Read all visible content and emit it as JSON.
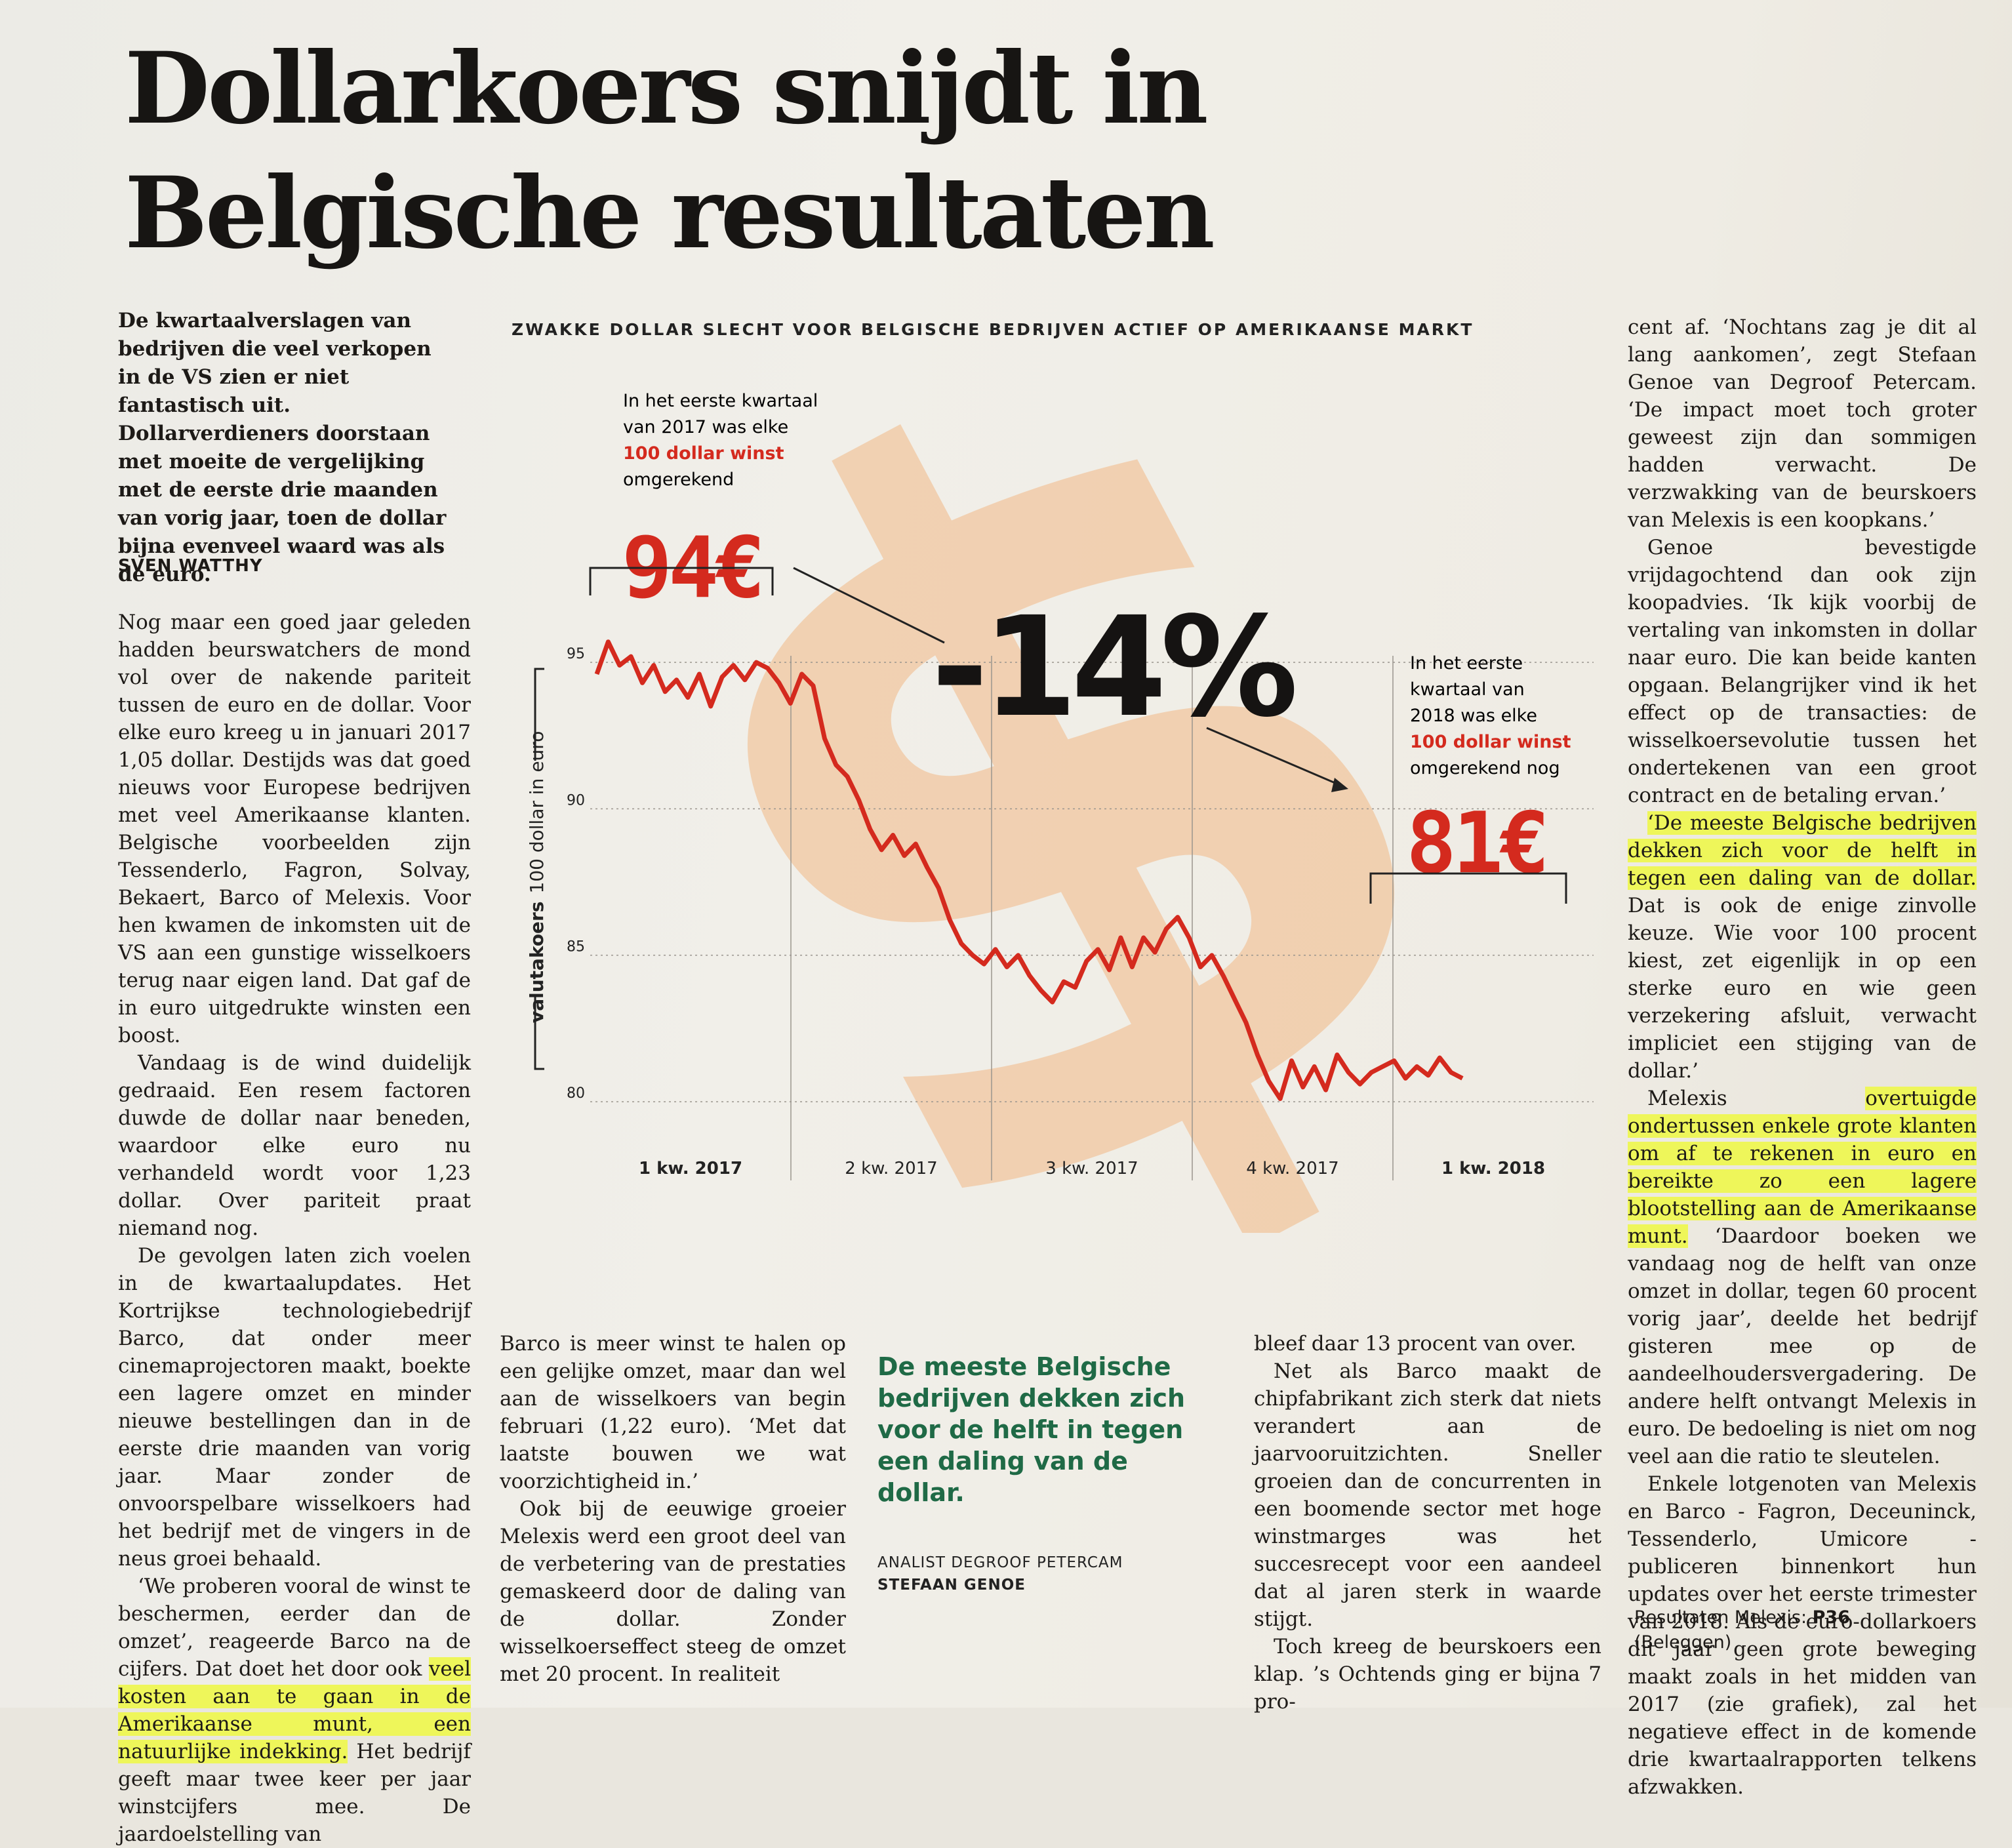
{
  "headline": "Dollarkoers snijdt in Belgische resultaten",
  "lead": "De kwartaalverslagen van bedrijven die veel verkopen in de VS zien er niet fantastisch uit. Dollarverdieners doorstaan met moeite de vergelijking met de eerste drie maanden van vorig jaar, toen de dollar bijna evenveel waard was als de euro.",
  "byline": "SVEN WATTHY",
  "col1": {
    "p1": "Nog maar een goed jaar geleden hadden beurswatchers de mond vol over de nakende pariteit tussen de euro en de dollar. Voor elke euro kreeg u in januari 2017 1,05 dollar. Destijds was dat goed nieuws voor Europese bedrijven met veel Amerikaanse klanten. Belgische voorbeelden zijn Tessenderlo, Fagron, Solvay, Bekaert, Barco of Melexis. Voor hen kwamen de inkomsten uit de VS aan een gunstige wisselkoers terug naar eigen land. Dat gaf de in euro uitgedrukte winsten een boost.",
    "p2": "Vandaag is de wind duidelijk gedraaid. Een resem factoren duwde de dollar naar beneden, waardoor elke euro nu verhandeld wordt voor 1,23 dollar. Over pariteit praat niemand nog.",
    "p3": "De gevolgen laten zich voelen in de kwartaalupdates. Het Kortrijkse technologiebedrijf Barco, dat onder meer cinemaprojectoren maakt, boekte een lagere omzet en minder nieuwe bestellingen dan in de eerste drie maanden van vorig jaar. Maar zonder de onvoorspelbare wisselkoers had het bedrijf met de vingers in de neus groei behaald.",
    "p4a": "‘We proberen vooral de winst te beschermen, eerder dan de omzet’, reageerde Barco na de cijfers. Dat doet het door ook ",
    "p4hl": "veel kosten aan te gaan in de Amerikaanse munt, een natuurlijke indekking.",
    "p4b": " Het bedrijf geeft maar twee keer per jaar winstcijfers mee. De jaardoelstelling van"
  },
  "col2": {
    "p1": "Barco is meer winst te halen op een gelijke omzet, maar dan wel aan de wisselkoers van begin februari (1,22 euro). ‘Met dat laatste bouwen we wat voorzichtigheid in.’",
    "p2": "Ook bij de eeuwige groeier Melexis werd een groot deel van de verbetering van de prestaties gemaskeerd door de daling van de dollar. Zonder wisselkoerseffect steeg de omzet met 20 procent. In realiteit"
  },
  "quote": {
    "text": "De meeste Belgische bedrijven dekken zich voor de helft in tegen een daling van de dollar.",
    "source_line1": "ANALIST DEGROOF PETERCAM",
    "source_line2": "STEFAAN GENOE"
  },
  "col3": {
    "p1": "bleef daar 13 procent van over.",
    "p2": "Net als Barco maakt de chipfabrikant zich sterk dat niets verandert aan de jaarvooruitzichten. Sneller groeien dan de concurrenten in een boomende sector met hoge winstmarges was het succesrecept voor een aandeel dat al jaren sterk in waarde stijgt.",
    "p3": "Toch kreeg de beurskoers een klap. ’s Ochtends ging er bijna 7 pro-"
  },
  "col4": {
    "p1": "cent af. ‘Nochtans zag je dit al lang aankomen’, zegt Stefaan Genoe van Degroof Petercam. ‘De impact moet toch groter geweest zijn dan sommigen hadden verwacht. De verzwakking van de beurskoers van Melexis is een koopkans.’",
    "p2": "Genoe bevestigde vrijdagochtend dan ook zijn koopadvies. ‘Ik kijk voorbij de vertaling van inkomsten in dollar naar euro. Die kan beide kanten opgaan. Belangrijker vind ik het effect op de transacties: de wisselkoersevolutie tussen het ondertekenen van een groot contract en de betaling ervan.’",
    "p3hl": "‘De meeste Belgische bedrijven dekken zich voor de helft in tegen een daling van de dollar.",
    "p3b": " Dat is ook de enige zinvolle keuze. Wie voor 100 procent kiest, zet eigenlijk in op een sterke euro en wie geen verzekering afsluit, verwacht impliciet een stijging van de dollar.’",
    "p4a": "Melexis ",
    "p4hl": "overtuigde ondertussen enkele grote klanten om af te rekenen in euro en bereikte zo een lagere blootstelling aan de Amerikaanse munt.",
    "p4b": " ‘Daardoor boeken we vandaag nog de helft van onze omzet in dollar, tegen 60 procent vorig jaar’, deelde het bedrijf gisteren mee op de aandeelhoudersvergadering. De andere helft ontvangt Melexis in euro. De bedoeling is niet om nog veel aan die ratio te sleutelen.",
    "p5": "Enkele lotgenoten van Melexis en Barco - Fagron, Deceuninck, Tessenderlo, Umicore - publiceren binnenkort hun updates over het eerste trimester van 2018. Als de euro-dollarkoers dit jaar geen grote beweging maakt zoals in het midden van 2017 (zie grafiek), zal het negatieve effect in de komende drie kwartaalrapporten telkens afzwakken.",
    "ref_label": "Resultaten Melexis: ",
    "ref_page": "P36",
    "ref_section": "(Beleggen)"
  },
  "chart": {
    "kicker": "ZWAKKE DOLLAR SLECHT VOOR BELGISCHE BEDRIJVEN ACTIEF OP AMERIKAANSE MARKT",
    "ann1": [
      "In het eerste kwartaal",
      "van 2017 was elke",
      "100 dollar winst",
      "omgerekend"
    ],
    "value_start": "94€",
    "change": "-14%",
    "ann2": [
      "In het eerste",
      "kwartaal van",
      "2018 was elke",
      "100 dollar winst",
      "omgerekend nog"
    ],
    "value_end": "81€",
    "y_label_bold": "valutakoers",
    "y_label": "100 dollar in euro",
    "accent": "#d42a1e",
    "background_symbol": "dollar-sign-icon"
  },
  "chart_data": {
    "type": "line",
    "xlabel": "",
    "ylabel": "valutakoers 100 dollar in euro",
    "ylim": [
      80,
      95
    ],
    "yticks": [
      95,
      90,
      85,
      80
    ],
    "x_tick_labels": [
      "1 kw. 2017",
      "2 kw. 2017",
      "3 kw. 2017",
      "4 kw. 2017",
      "1 kw. 2018"
    ],
    "series": [
      {
        "values": [
          94.6,
          95.7,
          94.9,
          95.2,
          94.3,
          94.9,
          94.0,
          94.4,
          93.8,
          94.6,
          93.5,
          94.5,
          94.9,
          94.4,
          95.0,
          94.8,
          94.3,
          93.6,
          94.6,
          94.2,
          92.4,
          91.5,
          91.1,
          90.3,
          89.3,
          88.6,
          89.1,
          88.4,
          88.8,
          88.0,
          87.3,
          86.2,
          85.4,
          85.0,
          84.7,
          85.2,
          84.6,
          85.0,
          84.3,
          83.8,
          83.4,
          84.1,
          83.9,
          84.8,
          85.2,
          84.5,
          85.6,
          84.6,
          85.6,
          85.1,
          85.9,
          86.3,
          85.6,
          84.6,
          85.0,
          84.3,
          83.5,
          82.7,
          81.6,
          80.7,
          80.1,
          81.4,
          80.5,
          81.2,
          80.4,
          81.6,
          81.0,
          80.6,
          81.0,
          81.2,
          81.4,
          80.8,
          81.2,
          80.9,
          81.5,
          81.0,
          80.8
        ]
      }
    ]
  }
}
